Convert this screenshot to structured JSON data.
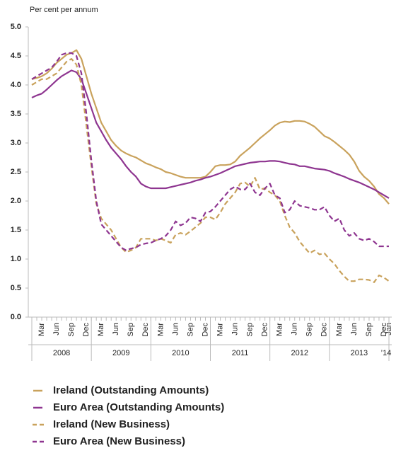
{
  "chart_data": {
    "type": "line",
    "y_axis_label": "Per cent per annum",
    "categories": [
      null,
      null,
      "Mar",
      null,
      null,
      "Jun",
      null,
      null,
      "Sep",
      null,
      null,
      "Dec",
      null,
      null,
      "Mar",
      null,
      null,
      "Jun",
      null,
      null,
      "Sep",
      null,
      null,
      "Dec",
      null,
      null,
      "Mar",
      null,
      null,
      "Jun",
      null,
      null,
      "Sep",
      null,
      null,
      "Dec",
      null,
      null,
      "Mar",
      null,
      null,
      "Jun",
      null,
      null,
      "Sep",
      null,
      null,
      "Dec",
      null,
      null,
      "Mar",
      null,
      null,
      "Jun",
      null,
      null,
      "Sep",
      null,
      null,
      "Dec",
      null,
      null,
      "Mar",
      null,
      null,
      "Jun",
      null,
      null,
      "Sep",
      null,
      null,
      "Dec",
      "Jan"
    ],
    "year_labels": [
      "2008",
      "2009",
      "2010",
      "2011",
      "2012",
      "2013",
      "’14"
    ],
    "ylim": [
      0,
      5
    ],
    "yticks": [
      {
        "value": 0,
        "label": "0.0"
      },
      0.5,
      {
        "value": 1,
        "label": "1.0"
      },
      1.5,
      {
        "value": 2,
        "label": "2.0"
      },
      2.5,
      {
        "value": 3,
        "label": "3.0"
      },
      3.5,
      {
        "value": 4,
        "label": "4.0"
      },
      4.5,
      {
        "value": 5,
        "label": "5.0"
      }
    ],
    "series": [
      {
        "name": "Ireland (Outstanding Amounts)",
        "color": "#c9a25c",
        "dashed": false,
        "values": [
          4.1,
          4.12,
          4.15,
          4.2,
          4.28,
          4.38,
          4.45,
          4.52,
          4.55,
          4.6,
          4.45,
          4.15,
          3.85,
          3.6,
          3.35,
          3.2,
          3.05,
          2.95,
          2.87,
          2.82,
          2.78,
          2.75,
          2.7,
          2.65,
          2.62,
          2.58,
          2.55,
          2.5,
          2.48,
          2.45,
          2.42,
          2.4,
          2.4,
          2.4,
          2.4,
          2.42,
          2.5,
          2.6,
          2.62,
          2.62,
          2.63,
          2.68,
          2.78,
          2.85,
          2.92,
          3.0,
          3.08,
          3.15,
          3.22,
          3.3,
          3.35,
          3.37,
          3.36,
          3.38,
          3.38,
          3.37,
          3.33,
          3.28,
          3.2,
          3.12,
          3.08,
          3.02,
          2.95,
          2.88,
          2.8,
          2.68,
          2.52,
          2.42,
          2.35,
          2.25,
          2.12,
          2.05,
          1.95
        ]
      },
      {
        "name": "Euro Area (Outstanding Amounts)",
        "color": "#8e3590",
        "dashed": false,
        "values": [
          3.78,
          3.82,
          3.85,
          3.92,
          4.0,
          4.08,
          4.15,
          4.2,
          4.25,
          4.22,
          4.1,
          3.85,
          3.6,
          3.35,
          3.2,
          3.05,
          2.92,
          2.82,
          2.72,
          2.6,
          2.5,
          2.42,
          2.3,
          2.25,
          2.22,
          2.22,
          2.22,
          2.22,
          2.24,
          2.26,
          2.28,
          2.3,
          2.32,
          2.35,
          2.37,
          2.4,
          2.42,
          2.45,
          2.48,
          2.52,
          2.56,
          2.6,
          2.62,
          2.64,
          2.66,
          2.67,
          2.68,
          2.68,
          2.69,
          2.69,
          2.68,
          2.66,
          2.64,
          2.63,
          2.6,
          2.6,
          2.58,
          2.56,
          2.55,
          2.54,
          2.52,
          2.48,
          2.45,
          2.42,
          2.38,
          2.35,
          2.32,
          2.28,
          2.24,
          2.2,
          2.15,
          2.1,
          2.05
        ]
      },
      {
        "name": "Ireland (New Business)",
        "color": "#c9a25c",
        "dashed": true,
        "values": [
          4.0,
          4.05,
          4.1,
          4.1,
          4.15,
          4.2,
          4.3,
          4.4,
          4.45,
          4.35,
          4.0,
          3.3,
          2.6,
          1.95,
          1.7,
          1.6,
          1.5,
          1.35,
          1.2,
          1.12,
          1.15,
          1.2,
          1.35,
          1.35,
          1.35,
          1.32,
          1.35,
          1.32,
          1.28,
          1.42,
          1.45,
          1.42,
          1.48,
          1.55,
          1.62,
          1.72,
          1.72,
          1.68,
          1.8,
          1.95,
          2.05,
          2.15,
          2.3,
          2.32,
          2.25,
          2.4,
          2.2,
          2.22,
          2.15,
          2.1,
          2.0,
          1.75,
          1.55,
          1.45,
          1.3,
          1.2,
          1.1,
          1.15,
          1.08,
          1.1,
          1.0,
          0.92,
          0.8,
          0.7,
          0.62,
          0.62,
          0.65,
          0.65,
          0.64,
          0.6,
          0.72,
          0.68,
          0.62
        ]
      },
      {
        "name": "Euro Area (New Business)",
        "color": "#8e3590",
        "dashed": true,
        "values": [
          4.1,
          4.15,
          4.2,
          4.25,
          4.3,
          4.4,
          4.52,
          4.55,
          4.55,
          4.5,
          4.2,
          3.5,
          2.7,
          2.0,
          1.6,
          1.5,
          1.4,
          1.3,
          1.2,
          1.15,
          1.18,
          1.2,
          1.25,
          1.27,
          1.28,
          1.32,
          1.35,
          1.4,
          1.5,
          1.65,
          1.58,
          1.62,
          1.72,
          1.7,
          1.65,
          1.8,
          1.82,
          1.9,
          2.0,
          2.1,
          2.2,
          2.25,
          2.2,
          2.2,
          2.3,
          2.15,
          2.1,
          2.22,
          2.3,
          2.1,
          2.05,
          1.8,
          1.85,
          2.0,
          1.92,
          1.9,
          1.88,
          1.85,
          1.85,
          1.9,
          1.75,
          1.65,
          1.7,
          1.5,
          1.4,
          1.45,
          1.35,
          1.32,
          1.35,
          1.3,
          1.22,
          1.22,
          1.22
        ]
      }
    ]
  }
}
